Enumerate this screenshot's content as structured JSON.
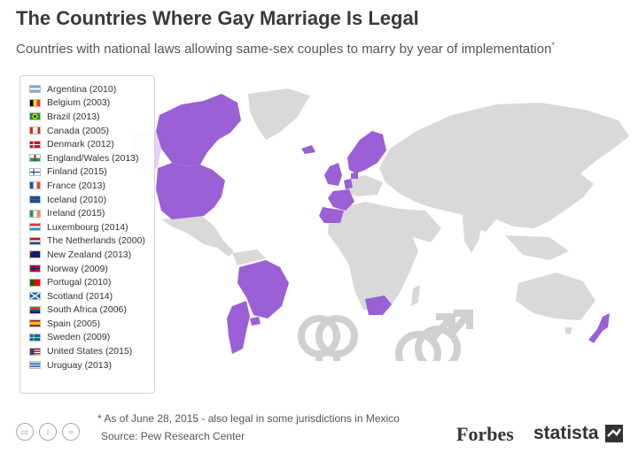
{
  "header": {
    "title": "The Countries Where Gay Marriage Is Legal",
    "subtitle": "Countries with national laws allowing same-sex couples to marry by year of implementation",
    "subtitle_mark": "*"
  },
  "colors": {
    "legal": "#9b5fd6",
    "land": "#d9d9d9",
    "symbol": "#d0d0d0"
  },
  "legend": {
    "items": [
      {
        "label": "Argentina (2010)",
        "flag": "argentina-flag"
      },
      {
        "label": "Belgium (2003)",
        "flag": "belgium-flag"
      },
      {
        "label": "Brazil (2013)",
        "flag": "brazil-flag"
      },
      {
        "label": "Canada (2005)",
        "flag": "canada-flag"
      },
      {
        "label": "Denmark (2012)",
        "flag": "denmark-flag"
      },
      {
        "label": "England/Wales (2013)",
        "flag": "england-wales-flag"
      },
      {
        "label": "Finland (2015)",
        "flag": "finland-flag"
      },
      {
        "label": "France (2013)",
        "flag": "france-flag"
      },
      {
        "label": "Iceland (2010)",
        "flag": "iceland-flag"
      },
      {
        "label": "Ireland (2015)",
        "flag": "ireland-flag"
      },
      {
        "label": "Luxembourg (2014)",
        "flag": "luxembourg-flag"
      },
      {
        "label": "The Netherlands (2000)",
        "flag": "netherlands-flag"
      },
      {
        "label": "New Zealand (2013)",
        "flag": "new-zealand-flag"
      },
      {
        "label": "Norway (2009)",
        "flag": "norway-flag"
      },
      {
        "label": "Portugal (2010)",
        "flag": "portugal-flag"
      },
      {
        "label": "Scotland (2014)",
        "flag": "scotland-flag"
      },
      {
        "label": "South Africa (2006)",
        "flag": "south-africa-flag"
      },
      {
        "label": "Spain (2005)",
        "flag": "spain-flag"
      },
      {
        "label": "Sweden (2009)",
        "flag": "sweden-flag"
      },
      {
        "label": "United States (2015)",
        "flag": "united-states-flag"
      },
      {
        "label": "Uruguay (2013)",
        "flag": "uruguay-flag"
      }
    ]
  },
  "footer": {
    "note": "* As of June 28, 2015 - also legal in some jurisdictions in Mexico",
    "source": "Source: Pew Research Center",
    "forbes": "Forbes",
    "statista": "statista",
    "cc": [
      "cc",
      "i",
      "="
    ]
  }
}
